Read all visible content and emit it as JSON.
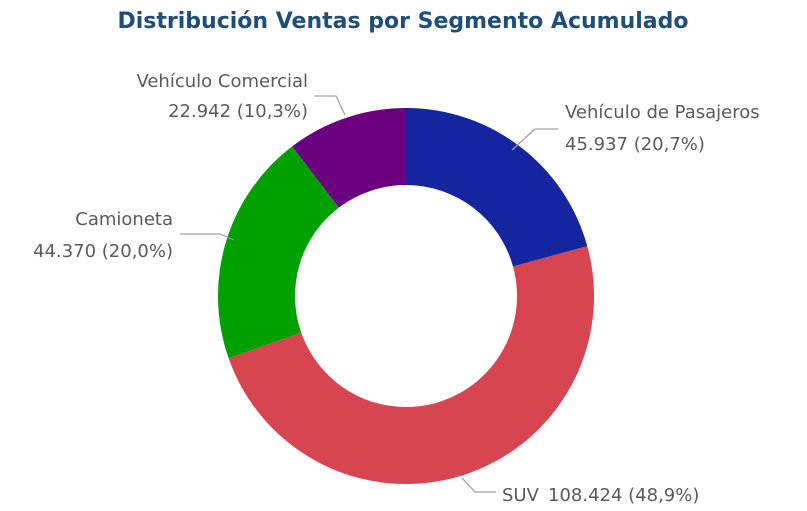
{
  "chart_data": {
    "type": "donut",
    "title": "Distribución Ventas por Segmento Acumulado",
    "categories": [
      "Vehículo de Pasajeros",
      "SUV",
      "Camioneta",
      "Vehículo Comercial"
    ],
    "values": [
      45937,
      108424,
      44370,
      22942
    ],
    "value_labels": [
      "45.937 (20,7%)",
      "108.424 (48,9%)",
      "44.370 (20,0%)",
      "22.942 (10,3%)"
    ],
    "colors": [
      "#14259f",
      "#d64550",
      "#00a000",
      "#6b0080"
    ]
  }
}
